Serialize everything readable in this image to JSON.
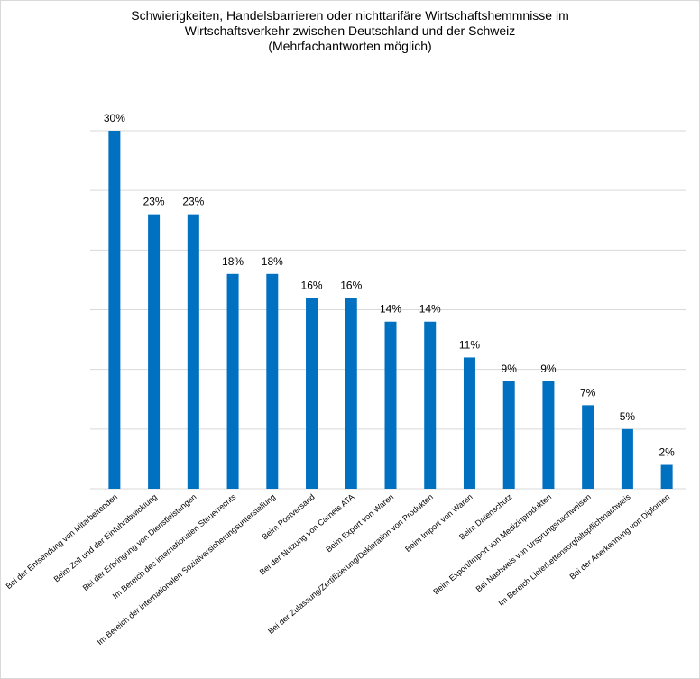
{
  "chart_data": {
    "type": "bar",
    "title": [
      "Schwierigkeiten, Handelsbarrieren oder nichttarifäre Wirtschaftshemmnisse im",
      "Wirtschaftsverkehr zwischen Deutschland und der Schweiz",
      "(Mehrfachantworten möglich)"
    ],
    "categories": [
      "Bei der Entsendung von Mitarbeitenden",
      "Beim Zoll und der Einfuhrabwicklung",
      "Bei der Erbringung von Dienstleistungen",
      "Im Bereich des internationalen Steuerrechts",
      "Im Bereich der internationalen Sozialversicherungsunterstellung",
      "Beim Postversand",
      "Bei der Nutzung von Carnets ATA",
      "Beim Export von Waren",
      "Bei der Zulassung/Zertifizierung/Deklaration von Produkten",
      "Beim Import von Waren",
      "Beim Datenschutz",
      "Beim Export/Import von Medizinprodukten",
      "Bei Nachweis von Ursprungsnachweisen",
      "Im Bereich Lieferkettensorgfaltspflichtnachweis",
      "Bei der Anerkennung von Diplomen"
    ],
    "values": [
      30,
      23,
      23,
      18,
      18,
      16,
      16,
      14,
      14,
      11,
      9,
      9,
      7,
      5,
      2
    ],
    "value_labels": [
      "30%",
      "23%",
      "23%",
      "18%",
      "18%",
      "16%",
      "16%",
      "14%",
      "14%",
      "11%",
      "9%",
      "9%",
      "7%",
      "5%",
      "2%"
    ],
    "color": "#0070c0",
    "ylim": [
      0,
      30
    ],
    "yticks": [
      0,
      5,
      10,
      15,
      20,
      25,
      30
    ],
    "grid": true
  }
}
